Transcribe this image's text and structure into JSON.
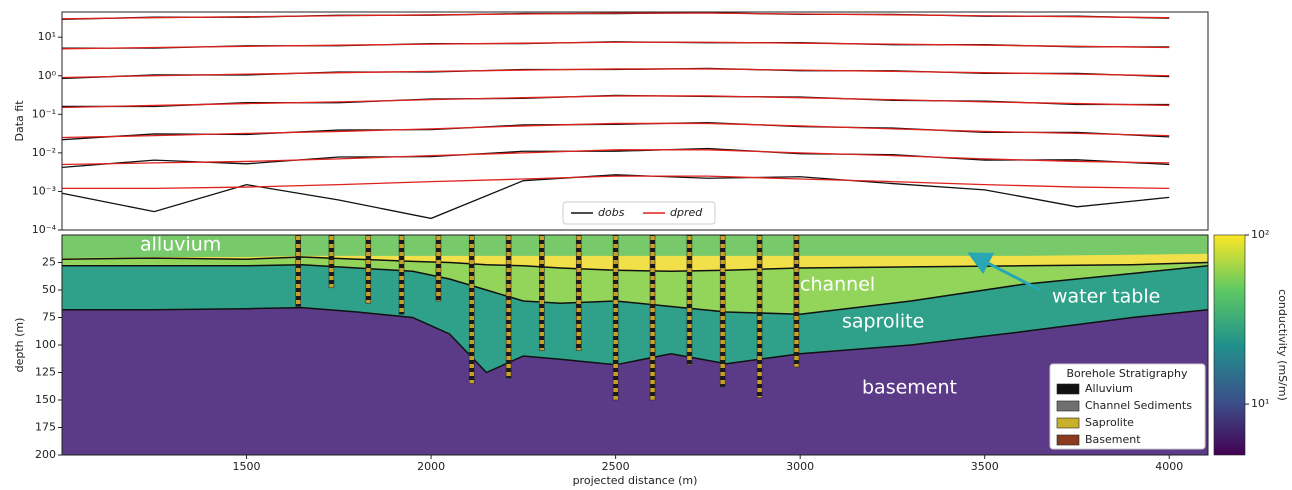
{
  "chart_data": [
    {
      "type": "line",
      "ylabel": "Data fit",
      "log_y": true,
      "ylim": [
        0.0001,
        45
      ],
      "yticks": [
        {
          "value": 10,
          "label": "10¹"
        },
        {
          "value": 1,
          "label": "10⁰"
        },
        {
          "value": 0.1,
          "label": "10⁻¹"
        },
        {
          "value": 0.01,
          "label": "10⁻²"
        },
        {
          "value": 0.001,
          "label": "10⁻³"
        },
        {
          "value": 0.0001,
          "label": "10⁻⁴"
        }
      ],
      "xlim": [
        1000,
        4105
      ],
      "x": [
        1000,
        1250,
        1500,
        1750,
        2000,
        2250,
        2500,
        2750,
        3000,
        3250,
        3500,
        3750,
        4000
      ],
      "series": [
        {
          "name": "dobs",
          "color": "#111111",
          "gates": [
            [
              29,
              33,
              33,
              37,
              37,
              41,
              41,
              43,
              39,
              39,
              35,
              35,
              31
            ],
            [
              5.2,
              5.2,
              6,
              6,
              6.8,
              6.8,
              7.6,
              7.2,
              7.2,
              6.4,
              6.4,
              5.6,
              5.6
            ],
            [
              0.85,
              1.05,
              1.05,
              1.25,
              1.25,
              1.45,
              1.45,
              1.55,
              1.35,
              1.35,
              1.15,
              1.15,
              0.95
            ],
            [
              0.16,
              0.16,
              0.2,
              0.2,
              0.25,
              0.26,
              0.31,
              0.29,
              0.28,
              0.23,
              0.22,
              0.18,
              0.18
            ],
            [
              0.022,
              0.031,
              0.03,
              0.039,
              0.04,
              0.053,
              0.055,
              0.061,
              0.048,
              0.044,
              0.034,
              0.034,
              0.026
            ],
            [
              0.0042,
              0.0065,
              0.0052,
              0.0078,
              0.008,
              0.011,
              0.011,
              0.013,
              0.0095,
              0.009,
              0.0065,
              0.0066,
              0.005
            ],
            [
              0.0009,
              0.0003,
              0.0015,
              0.0006,
              0.0002,
              0.0019,
              0.0027,
              0.0022,
              0.0024,
              0.0016,
              0.0011,
              0.0004,
              0.0007
            ]
          ]
        },
        {
          "name": "dpred",
          "color": "#e0201b",
          "gates": [
            [
              30,
              32,
              34,
              36,
              38,
              40,
              42,
              42,
              40,
              38,
              36,
              34,
              32
            ],
            [
              5,
              5.4,
              5.8,
              6.2,
              6.6,
              7,
              7.4,
              7.4,
              7,
              6.6,
              6.2,
              5.8,
              5.4
            ],
            [
              0.9,
              1,
              1.1,
              1.2,
              1.3,
              1.4,
              1.5,
              1.5,
              1.4,
              1.3,
              1.2,
              1.1,
              1
            ],
            [
              0.15,
              0.17,
              0.19,
              0.21,
              0.24,
              0.27,
              0.3,
              0.3,
              0.27,
              0.24,
              0.21,
              0.19,
              0.17
            ],
            [
              0.025,
              0.028,
              0.032,
              0.036,
              0.042,
              0.05,
              0.058,
              0.058,
              0.05,
              0.042,
              0.036,
              0.032,
              0.028
            ],
            [
              0.005,
              0.0055,
              0.006,
              0.007,
              0.0085,
              0.01,
              0.012,
              0.012,
              0.01,
              0.0085,
              0.007,
              0.006,
              0.0055
            ],
            [
              0.0012,
              0.0012,
              0.0013,
              0.0015,
              0.0018,
              0.0021,
              0.0025,
              0.0025,
              0.0021,
              0.0018,
              0.0015,
              0.0013,
              0.0012
            ]
          ]
        }
      ]
    },
    {
      "type": "section",
      "xlabel": "projected distance (m)",
      "ylabel": "depth (m)",
      "xlim": [
        1000,
        4105
      ],
      "ylim": [
        0,
        200
      ],
      "xticks": [
        1500,
        2000,
        2500,
        3000,
        3500,
        4000
      ],
      "yticks": [
        25,
        50,
        75,
        100,
        125,
        150,
        175,
        200
      ],
      "interfaces": {
        "x": [
          1000,
          1250,
          1500,
          1650,
          1800,
          1950,
          2050,
          2150,
          2250,
          2350,
          2500,
          2650,
          2800,
          3000,
          3300,
          3600,
          3900,
          4105
        ],
        "water_table": [
          21,
          20,
          20,
          19,
          19,
          19,
          19,
          19,
          19,
          19,
          19,
          19,
          19,
          19,
          19,
          19,
          18,
          17
        ],
        "alluvium_base": [
          22,
          21,
          22,
          20,
          22,
          24,
          25,
          27,
          28,
          30,
          32,
          33,
          32,
          30,
          29,
          28,
          27,
          25
        ],
        "channel_base": [
          28,
          28,
          28,
          27,
          30,
          33,
          40,
          50,
          60,
          62,
          60,
          65,
          70,
          72,
          60,
          45,
          35,
          28
        ],
        "basement_top": [
          68,
          68,
          67,
          66,
          70,
          75,
          90,
          125,
          110,
          113,
          118,
          108,
          117,
          108,
          100,
          88,
          75,
          68
        ]
      },
      "layer_colors": {
        "alluvium": "#78c96a",
        "water": "#f1e04a",
        "channel": "#93d55a",
        "saprolite": "#2fa08a",
        "basement": "#5b3a87"
      },
      "boreholes": {
        "x": [
          1640,
          1730,
          1830,
          1920,
          2020,
          2110,
          2210,
          2300,
          2400,
          2500,
          2600,
          2700,
          2790,
          2890,
          2990
        ],
        "depth": [
          65,
          48,
          62,
          72,
          60,
          135,
          130,
          105,
          105,
          150,
          150,
          118,
          138,
          148,
          120
        ]
      },
      "annotations": [
        "alluvium",
        "channel",
        "water table",
        "saprolite",
        "basement"
      ],
      "legend": {
        "title": "Borehole Stratigraphy",
        "entries": [
          {
            "name": "Alluvium",
            "color": "#111111"
          },
          {
            "name": "Channel Sediments",
            "color": "#707070"
          },
          {
            "name": "Saprolite",
            "color": "#c8b02a"
          },
          {
            "name": "Basement",
            "color": "#8a3b1e"
          }
        ]
      },
      "colorbar": {
        "label": "conductivity (mS/m)",
        "log": true,
        "lim": [
          5,
          100
        ],
        "ticks": [
          {
            "value": 100,
            "label": "10²"
          },
          {
            "value": 10,
            "label": "10¹"
          }
        ]
      }
    }
  ]
}
